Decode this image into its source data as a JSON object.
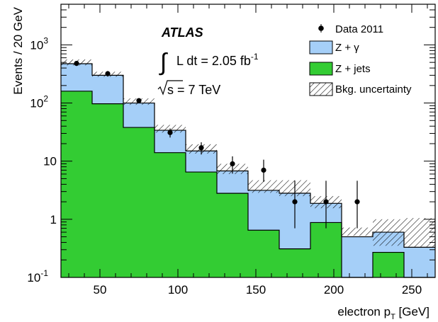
{
  "chart_data": {
    "type": "bar",
    "xlabel_main": "electron p",
    "xlabel_sub": "T",
    "xlabel_unit": " [GeV]",
    "ylabel": "Events / 20 GeV",
    "xlim": [
      25,
      265
    ],
    "ylim": [
      0.1,
      5000
    ],
    "yscale": "log",
    "x_ticks": [
      50,
      100,
      150,
      200,
      250
    ],
    "y_ticks": [
      {
        "value": 0.1,
        "base": "10",
        "exp": "-1"
      },
      {
        "value": 1,
        "base": "1",
        "exp": ""
      },
      {
        "value": 10,
        "base": "10",
        "exp": ""
      },
      {
        "value": 100,
        "base": "10",
        "exp": "2"
      },
      {
        "value": 1000,
        "base": "10",
        "exp": "3"
      }
    ],
    "bin_edges": [
      25,
      45,
      65,
      85,
      105,
      125,
      145,
      165,
      185,
      205,
      225,
      245,
      265
    ],
    "series": [
      {
        "name": "Z + jets",
        "color": "#33cc33",
        "values": [
          160,
          97,
          38,
          14,
          6.5,
          2.8,
          0.65,
          0.31,
          0.88,
          0.0,
          0.27,
          0.0
        ]
      },
      {
        "name": "Z + γ",
        "color": "#a5cff8",
        "values": [
          315,
          203,
          62,
          20,
          8.5,
          4.0,
          2.5,
          2.5,
          1.0,
          0.5,
          0.33,
          0.33
        ]
      }
    ],
    "uncertainty": {
      "name": "Bkg. uncertainty",
      "low": [
        445,
        283,
        93,
        31,
        13.5,
        6.0,
        2.85,
        2.5,
        1.55,
        0.52,
        0.35,
        0.33
      ],
      "high": [
        560,
        345,
        120,
        42,
        19.5,
        9.0,
        4.7,
        4.7,
        2.5,
        0.72,
        1.0,
        1.05
      ]
    },
    "data_points": {
      "name": "Data 2011",
      "x": [
        35,
        55,
        75,
        95,
        115,
        135,
        155,
        175,
        195,
        215
      ],
      "y": [
        480,
        320,
        110,
        31,
        17,
        9,
        7,
        2,
        2,
        2
      ],
      "err_low": [
        435,
        285,
        100,
        25.5,
        13,
        6.1,
        4.4,
        0.7,
        0.7,
        0.7
      ],
      "err_high": [
        525,
        355,
        121,
        36.5,
        21.1,
        12.1,
        10.6,
        4.6,
        4.6,
        4.6
      ]
    },
    "annotations": {
      "atlas": "ATLAS",
      "lumi": "L dt = 2.05 fb",
      "lumi_exp": "-1",
      "energy": "s = 7 TeV"
    },
    "legend_placement": "top-right",
    "grid": false
  }
}
